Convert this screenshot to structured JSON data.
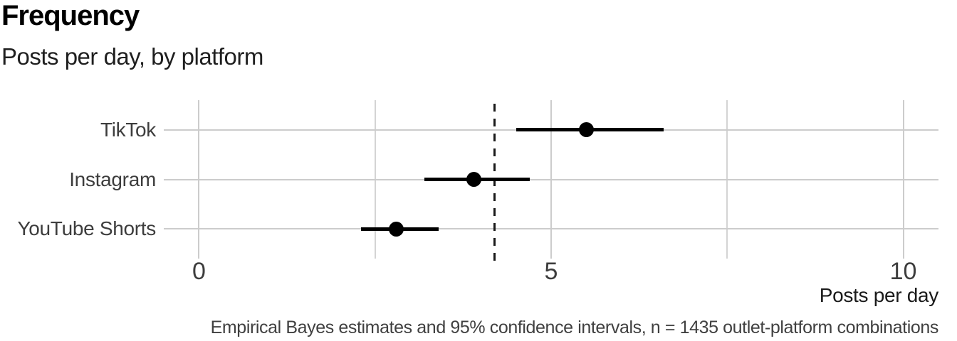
{
  "chart_data": {
    "type": "scatter",
    "subtype": "horizontal-dot-plot-with-ci",
    "title": "Frequency",
    "subtitle": "Posts per day, by platform",
    "caption": "Empirical Bayes estimates and 95% confidence intervals, n = 1435 outlet-platform combinations",
    "xlabel": "Posts per day",
    "ylabel": "",
    "categories": [
      "TikTok",
      "Instagram",
      "YouTube Shorts"
    ],
    "points": [
      {
        "category": "TikTok",
        "estimate": 5.5,
        "ci_low": 4.5,
        "ci_high": 6.6
      },
      {
        "category": "Instagram",
        "estimate": 3.9,
        "ci_low": 3.2,
        "ci_high": 4.7
      },
      {
        "category": "YouTube Shorts",
        "estimate": 2.8,
        "ci_low": 2.3,
        "ci_high": 3.4
      }
    ],
    "reference_line_x": 4.2,
    "reference_line_style": "dashed",
    "x_ticks": [
      "0",
      "5",
      "10"
    ],
    "x_tick_values": [
      0,
      5,
      10
    ],
    "x_minor_gridlines": [
      2.5,
      7.5
    ],
    "x_range": [
      -0.5,
      10.5
    ],
    "grid": "on",
    "legend": "none",
    "colors": {
      "point": "#000000",
      "ci_line": "#000000",
      "reference_line": "#1a1a1a",
      "grid_major": "#cccccc",
      "grid_minor": "#d4d4d4",
      "title_text": "#000000",
      "subtitle_text": "#1f1f1f",
      "axis_text": "#3d3d3d",
      "caption_text": "#404040"
    }
  }
}
